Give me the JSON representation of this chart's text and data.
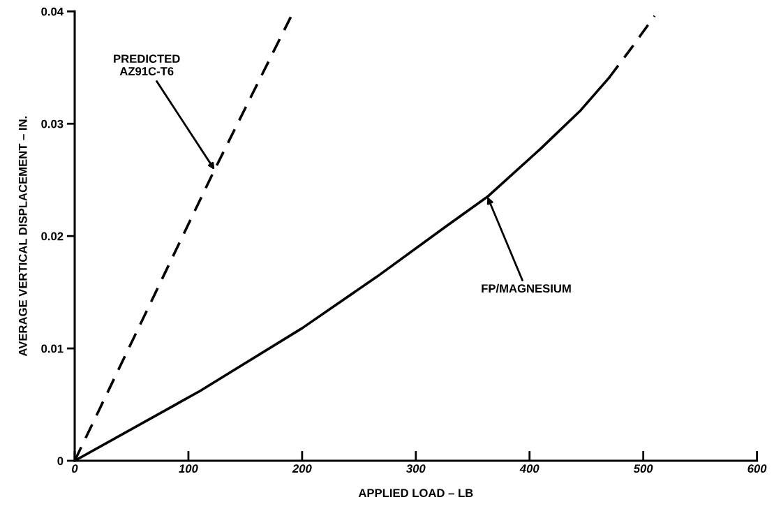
{
  "chart_data": {
    "type": "line",
    "xlabel": "APPLIED LOAD – LB",
    "ylabel": "AVERAGE VERTICAL DISPLACEMENT – IN.",
    "series": [
      {
        "color": "#000000",
        "line_style": "dashed",
        "x": [
          0,
          123,
          190
        ],
        "values": [
          0,
          0.0259,
          0.0395
        ]
      },
      {
        "color": "#000000",
        "line_style": "solid",
        "x": [
          0,
          110,
          200,
          266,
          327,
          363,
          410,
          445,
          470
        ],
        "values": [
          0,
          0.0062,
          0.0118,
          0.0164,
          0.0209,
          0.0235,
          0.0278,
          0.0312,
          0.0341
        ]
      },
      {
        "color": "#000000",
        "line_style": "dashed",
        "x": [
          470,
          490,
          510
        ],
        "values": [
          0.0341,
          0.0368,
          0.0396
        ]
      }
    ],
    "annotations": [
      {
        "text": "PREDICTED\nAZ91C-T6",
        "x": 123,
        "y": 0.0259
      },
      {
        "text": "FP/MAGNESIUM",
        "x": 363,
        "y": 0.0235
      }
    ],
    "xlim": [
      0,
      600
    ],
    "xticks": [
      0,
      100,
      200,
      300,
      400,
      500,
      600
    ],
    "ylim": [
      0,
      0.04
    ],
    "yticks": [
      0,
      0.01,
      0.02,
      0.03,
      0.04
    ],
    "grid": false,
    "legend": false,
    "marker": "none"
  }
}
